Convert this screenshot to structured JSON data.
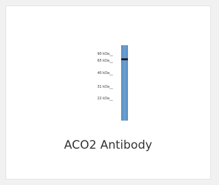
{
  "product": {
    "title": "ACO2 Antibody",
    "markers": [
      "90 kDa__",
      "65 kDa__",
      "40 kDa__",
      "31 kDa__",
      "22 kDa__"
    ]
  }
}
